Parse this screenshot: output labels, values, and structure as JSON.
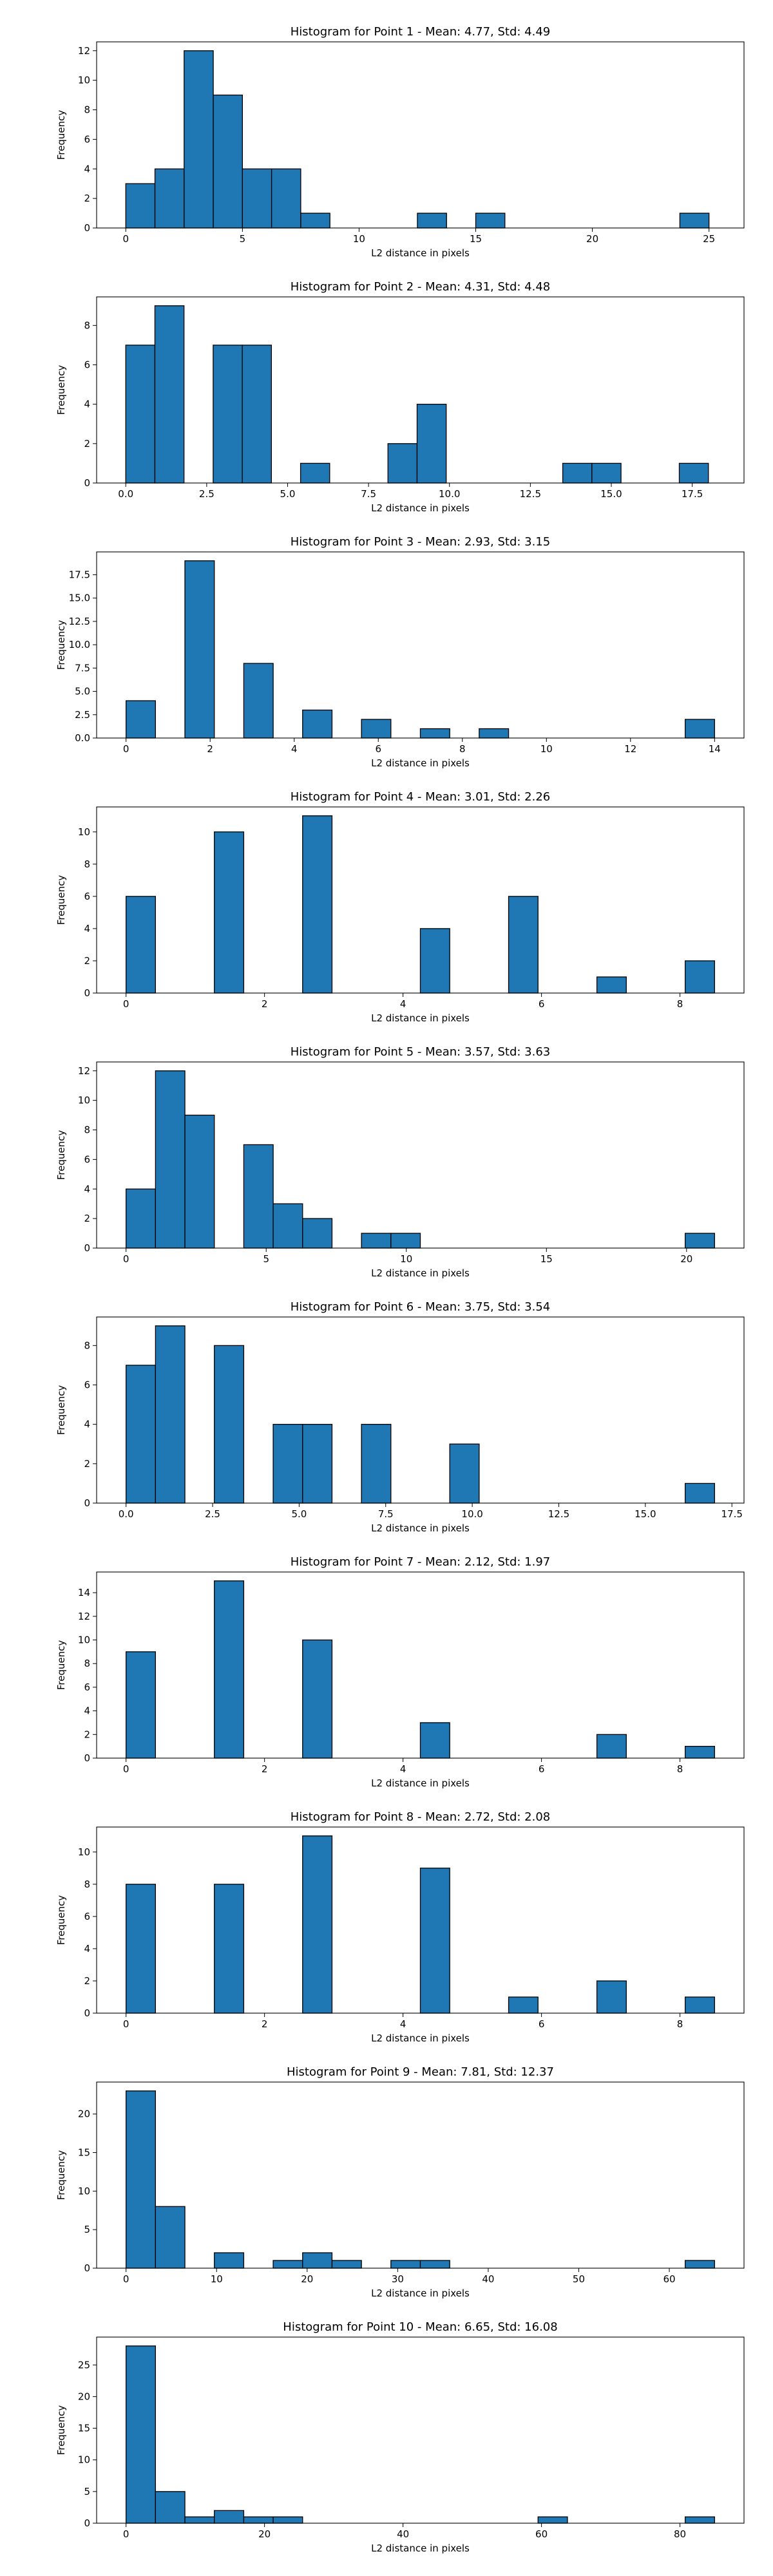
{
  "chart_data": [
    {
      "type": "bar",
      "title": "Histogram for Point 1 - Mean: 4.77, Std: 4.49",
      "xlabel": "L2 distance in pixels",
      "ylabel": "Frequency",
      "xlim": [
        -1.25,
        26.5
      ],
      "ylim": [
        0,
        12.6
      ],
      "xticks": [
        0,
        5,
        10,
        15,
        20,
        25
      ],
      "xtick_labels": [
        "0",
        "5",
        "10",
        "15",
        "20",
        "25"
      ],
      "yticks": [
        0,
        2,
        4,
        6,
        8,
        10,
        12
      ],
      "ytick_labels": [
        "0",
        "2",
        "4",
        "6",
        "8",
        "10",
        "12"
      ],
      "bin_edges": [
        0,
        1.25,
        2.5,
        3.75,
        5,
        6.25,
        7.5,
        8.75,
        10,
        11.25,
        12.5,
        13.75,
        15,
        16.25,
        17.5,
        18.75,
        20,
        21.25,
        22.5,
        23.75,
        25
      ],
      "counts": [
        3,
        4,
        12,
        9,
        4,
        4,
        1,
        0,
        0,
        0,
        1,
        0,
        1,
        0,
        0,
        0,
        0,
        0,
        0,
        1
      ],
      "bar_color": "#1f77b4",
      "edge_color": "#000000"
    },
    {
      "type": "bar",
      "title": "Histogram for Point 2 - Mean: 4.31, Std: 4.48",
      "xlabel": "L2 distance in pixels",
      "ylabel": "Frequency",
      "xlim": [
        -0.9,
        19.1
      ],
      "ylim": [
        0,
        9.45
      ],
      "xticks": [
        0,
        2.5,
        5,
        7.5,
        10,
        12.5,
        15,
        17.5
      ],
      "xtick_labels": [
        "0.0",
        "2.5",
        "5.0",
        "7.5",
        "10.0",
        "12.5",
        "15.0",
        "17.5"
      ],
      "yticks": [
        0,
        2,
        4,
        6,
        8
      ],
      "ytick_labels": [
        "0",
        "2",
        "4",
        "6",
        "8"
      ],
      "bin_edges": [
        0,
        0.9,
        1.8,
        2.7,
        3.6,
        4.5,
        5.4,
        6.3,
        7.2,
        8.1,
        9,
        9.9,
        10.8,
        11.7,
        12.6,
        13.5,
        14.4,
        15.3,
        16.2,
        17.1,
        18
      ],
      "counts": [
        7,
        9,
        0,
        7,
        7,
        0,
        1,
        0,
        0,
        2,
        4,
        0,
        0,
        0,
        0,
        1,
        1,
        0,
        0,
        1
      ],
      "bar_color": "#1f77b4",
      "edge_color": "#000000"
    },
    {
      "type": "bar",
      "title": "Histogram for Point 3 - Mean: 2.93, Std: 3.15",
      "xlabel": "L2 distance in pixels",
      "ylabel": "Frequency",
      "xlim": [
        -0.7,
        14.7
      ],
      "ylim": [
        0,
        19.95
      ],
      "xticks": [
        0,
        2,
        4,
        6,
        8,
        10,
        12,
        14
      ],
      "xtick_labels": [
        "0",
        "2",
        "4",
        "6",
        "8",
        "10",
        "12",
        "14"
      ],
      "yticks": [
        0,
        2.5,
        5,
        7.5,
        10,
        12.5,
        15,
        17.5
      ],
      "ytick_labels": [
        "0.0",
        "2.5",
        "5.0",
        "7.5",
        "10.0",
        "12.5",
        "15.0",
        "17.5"
      ],
      "bin_edges": [
        0,
        0.7,
        1.4,
        2.1,
        2.8,
        3.5,
        4.2,
        4.9,
        5.6,
        6.3,
        7,
        7.7,
        8.4,
        9.1,
        9.8,
        10.5,
        11.2,
        11.9,
        12.6,
        13.3,
        14
      ],
      "counts": [
        4,
        0,
        19,
        0,
        8,
        0,
        3,
        0,
        2,
        0,
        1,
        0,
        1,
        0,
        0,
        0,
        0,
        0,
        0,
        2
      ],
      "bar_color": "#1f77b4",
      "edge_color": "#000000"
    },
    {
      "type": "bar",
      "title": "Histogram for Point 4 - Mean: 3.01, Std: 2.26",
      "xlabel": "L2 distance in pixels",
      "ylabel": "Frequency",
      "xlim": [
        -0.425,
        8.925
      ],
      "ylim": [
        0,
        11.55
      ],
      "xticks": [
        0,
        2,
        4,
        6,
        8
      ],
      "xtick_labels": [
        "0",
        "2",
        "4",
        "6",
        "8"
      ],
      "yticks": [
        0,
        2,
        4,
        6,
        8,
        10
      ],
      "ytick_labels": [
        "0",
        "2",
        "4",
        "6",
        "8",
        "10"
      ],
      "bin_edges": [
        0,
        0.425,
        0.85,
        1.275,
        1.7,
        2.125,
        2.55,
        2.975,
        3.4,
        3.825,
        4.25,
        4.675,
        5.1,
        5.525,
        5.95,
        6.375,
        6.8,
        7.225,
        7.65,
        8.075,
        8.5
      ],
      "counts": [
        6,
        0,
        0,
        10,
        0,
        0,
        11,
        0,
        0,
        0,
        4,
        0,
        0,
        6,
        0,
        0,
        1,
        0,
        0,
        2
      ],
      "bar_color": "#1f77b4",
      "edge_color": "#000000"
    },
    {
      "type": "bar",
      "title": "Histogram for Point 5 - Mean: 3.57, Std: 3.63",
      "xlabel": "L2 distance in pixels",
      "ylabel": "Frequency",
      "xlim": [
        -1.05,
        22.05
      ],
      "ylim": [
        0,
        12.6
      ],
      "xticks": [
        0,
        5,
        10,
        15,
        20
      ],
      "xtick_labels": [
        "0",
        "5",
        "10",
        "15",
        "20"
      ],
      "yticks": [
        0,
        2,
        4,
        6,
        8,
        10,
        12
      ],
      "ytick_labels": [
        "0",
        "2",
        "4",
        "6",
        "8",
        "10",
        "12"
      ],
      "bin_edges": [
        0,
        1.05,
        2.1,
        3.15,
        4.2,
        5.25,
        6.3,
        7.35,
        8.4,
        9.45,
        10.5,
        11.55,
        12.6,
        13.65,
        14.7,
        15.75,
        16.8,
        17.85,
        18.9,
        19.95,
        21
      ],
      "counts": [
        4,
        12,
        9,
        0,
        7,
        3,
        2,
        0,
        1,
        1,
        0,
        0,
        0,
        0,
        0,
        0,
        0,
        0,
        0,
        1
      ],
      "bar_color": "#1f77b4",
      "edge_color": "#000000"
    },
    {
      "type": "bar",
      "title": "Histogram for Point 6 - Mean: 3.75, Std: 3.54",
      "xlabel": "L2 distance in pixels",
      "ylabel": "Frequency",
      "xlim": [
        -0.85,
        17.85
      ],
      "ylim": [
        0,
        9.45
      ],
      "xticks": [
        0,
        2.5,
        5,
        7.5,
        10,
        12.5,
        15,
        17.5
      ],
      "xtick_labels": [
        "0.0",
        "2.5",
        "5.0",
        "7.5",
        "10.0",
        "12.5",
        "15.0",
        "17.5"
      ],
      "yticks": [
        0,
        2,
        4,
        6,
        8
      ],
      "ytick_labels": [
        "0",
        "2",
        "4",
        "6",
        "8"
      ],
      "bin_edges": [
        0,
        0.85,
        1.7,
        2.55,
        3.4,
        4.25,
        5.1,
        5.95,
        6.8,
        7.65,
        8.5,
        9.35,
        10.2,
        11.05,
        11.9,
        12.75,
        13.6,
        14.45,
        15.3,
        16.15,
        17
      ],
      "counts": [
        7,
        9,
        0,
        8,
        0,
        4,
        4,
        0,
        4,
        0,
        0,
        3,
        0,
        0,
        0,
        0,
        0,
        0,
        0,
        1
      ],
      "bar_color": "#1f77b4",
      "edge_color": "#000000"
    },
    {
      "type": "bar",
      "title": "Histogram for Point 7 - Mean: 2.12, Std: 1.97",
      "xlabel": "L2 distance in pixels",
      "ylabel": "Frequency",
      "xlim": [
        -0.425,
        8.925
      ],
      "ylim": [
        0,
        15.75
      ],
      "xticks": [
        0,
        2,
        4,
        6,
        8
      ],
      "xtick_labels": [
        "0",
        "2",
        "4",
        "6",
        "8"
      ],
      "yticks": [
        0,
        2,
        4,
        6,
        8,
        10,
        12,
        14
      ],
      "ytick_labels": [
        "0",
        "2",
        "4",
        "6",
        "8",
        "10",
        "12",
        "14"
      ],
      "bin_edges": [
        0,
        0.425,
        0.85,
        1.275,
        1.7,
        2.125,
        2.55,
        2.975,
        3.4,
        3.825,
        4.25,
        4.675,
        5.1,
        5.525,
        5.95,
        6.375,
        6.8,
        7.225,
        7.65,
        8.075,
        8.5
      ],
      "counts": [
        9,
        0,
        0,
        15,
        0,
        0,
        10,
        0,
        0,
        0,
        3,
        0,
        0,
        0,
        0,
        0,
        2,
        0,
        0,
        1
      ],
      "bar_color": "#1f77b4",
      "edge_color": "#000000"
    },
    {
      "type": "bar",
      "title": "Histogram for Point 8 - Mean: 2.72, Std: 2.08",
      "xlabel": "L2 distance in pixels",
      "ylabel": "Frequency",
      "xlim": [
        -0.425,
        8.925
      ],
      "ylim": [
        0,
        11.55
      ],
      "xticks": [
        0,
        2,
        4,
        6,
        8
      ],
      "xtick_labels": [
        "0",
        "2",
        "4",
        "6",
        "8"
      ],
      "yticks": [
        0,
        2,
        4,
        6,
        8,
        10
      ],
      "ytick_labels": [
        "0",
        "2",
        "4",
        "6",
        "8",
        "10"
      ],
      "bin_edges": [
        0,
        0.425,
        0.85,
        1.275,
        1.7,
        2.125,
        2.55,
        2.975,
        3.4,
        3.825,
        4.25,
        4.675,
        5.1,
        5.525,
        5.95,
        6.375,
        6.8,
        7.225,
        7.65,
        8.075,
        8.5
      ],
      "counts": [
        8,
        0,
        0,
        8,
        0,
        0,
        11,
        0,
        0,
        0,
        9,
        0,
        0,
        1,
        0,
        0,
        2,
        0,
        0,
        1
      ],
      "bar_color": "#1f77b4",
      "edge_color": "#000000"
    },
    {
      "type": "bar",
      "title": "Histogram for Point 9 - Mean: 7.81, Std: 12.37",
      "xlabel": "L2 distance in pixels",
      "ylabel": "Frequency",
      "xlim": [
        -3.25,
        68.25
      ],
      "ylim": [
        0,
        24.15
      ],
      "xticks": [
        0,
        10,
        20,
        30,
        40,
        50,
        60
      ],
      "xtick_labels": [
        "0",
        "10",
        "20",
        "30",
        "40",
        "50",
        "60"
      ],
      "yticks": [
        0,
        5,
        10,
        15,
        20
      ],
      "ytick_labels": [
        "0",
        "5",
        "10",
        "15",
        "20"
      ],
      "bin_edges": [
        0,
        3.25,
        6.5,
        9.75,
        13,
        16.25,
        19.5,
        22.75,
        26,
        29.25,
        32.5,
        35.75,
        39,
        42.25,
        45.5,
        48.75,
        52,
        55.25,
        58.5,
        61.75,
        65
      ],
      "counts": [
        23,
        8,
        0,
        2,
        0,
        1,
        2,
        1,
        0,
        1,
        1,
        0,
        0,
        0,
        0,
        0,
        0,
        0,
        0,
        1
      ],
      "bar_color": "#1f77b4",
      "edge_color": "#000000"
    },
    {
      "type": "bar",
      "title": "Histogram for Point 10 - Mean: 6.65, Std: 16.08",
      "xlabel": "L2 distance in pixels",
      "ylabel": "Frequency",
      "xlim": [
        -4.25,
        89.25
      ],
      "ylim": [
        0,
        29.4
      ],
      "xticks": [
        0,
        20,
        40,
        60,
        80
      ],
      "xtick_labels": [
        "0",
        "20",
        "40",
        "60",
        "80"
      ],
      "yticks": [
        0,
        5,
        10,
        15,
        20,
        25
      ],
      "ytick_labels": [
        "0",
        "5",
        "10",
        "15",
        "20",
        "25"
      ],
      "bin_edges": [
        0,
        4.25,
        8.5,
        12.75,
        17,
        21.25,
        25.5,
        29.75,
        34,
        38.25,
        42.5,
        46.75,
        51,
        55.25,
        59.5,
        63.75,
        68,
        72.25,
        76.5,
        80.75,
        85
      ],
      "counts": [
        28,
        5,
        1,
        2,
        1,
        1,
        0,
        0,
        0,
        0,
        0,
        0,
        0,
        0,
        1,
        0,
        0,
        0,
        0,
        1
      ],
      "bar_color": "#1f77b4",
      "edge_color": "#000000"
    }
  ]
}
